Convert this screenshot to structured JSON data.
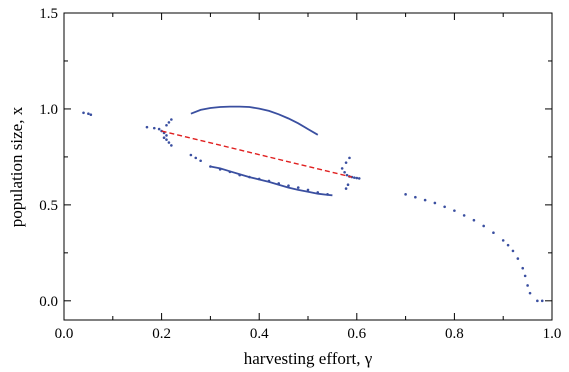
{
  "chart_data": {
    "type": "scatter",
    "xlabel": "harvesting effort, γ",
    "ylabel": "population size, x",
    "xlim": [
      0.0,
      1.0
    ],
    "ylim": [
      -0.1,
      1.5
    ],
    "xticks": [
      0.0,
      0.2,
      0.4,
      0.6,
      0.8,
      1.0
    ],
    "xtick_labels": [
      "0.0",
      "0.2",
      "0.4",
      "0.6",
      "0.8",
      "1.0"
    ],
    "yticks": [
      0.0,
      0.5,
      1.0,
      1.5
    ],
    "ytick_labels": [
      "0.0",
      "0.5",
      "1.0",
      "1.5"
    ],
    "grid": false,
    "colors": {
      "attractor": "#3a4fa0",
      "unstable": "#e02020"
    },
    "series": [
      {
        "style": "dots",
        "color": "#3a4fa0",
        "points": [
          [
            0.04,
            0.98
          ],
          [
            0.05,
            0.975
          ],
          [
            0.055,
            0.97
          ],
          [
            0.17,
            0.905
          ],
          [
            0.185,
            0.9
          ],
          [
            0.195,
            0.895
          ],
          [
            0.2,
            0.885
          ],
          [
            0.205,
            0.875
          ],
          [
            0.21,
            0.862
          ],
          [
            0.205,
            0.85
          ],
          [
            0.21,
            0.915
          ],
          [
            0.215,
            0.93
          ],
          [
            0.21,
            0.84
          ],
          [
            0.215,
            0.825
          ],
          [
            0.22,
            0.81
          ],
          [
            0.22,
            0.945
          ],
          [
            0.26,
            0.76
          ],
          [
            0.27,
            0.745
          ],
          [
            0.28,
            0.73
          ],
          [
            0.3,
            0.7
          ],
          [
            0.32,
            0.685
          ],
          [
            0.34,
            0.672
          ],
          [
            0.36,
            0.655
          ],
          [
            0.38,
            0.645
          ],
          [
            0.4,
            0.635
          ],
          [
            0.42,
            0.625
          ],
          [
            0.44,
            0.612
          ],
          [
            0.46,
            0.6
          ],
          [
            0.48,
            0.59
          ],
          [
            0.5,
            0.578
          ],
          [
            0.52,
            0.565
          ],
          [
            0.54,
            0.555
          ],
          [
            0.57,
            0.69
          ],
          [
            0.575,
            0.67
          ],
          [
            0.58,
            0.655
          ],
          [
            0.585,
            0.648
          ],
          [
            0.59,
            0.645
          ],
          [
            0.595,
            0.642
          ],
          [
            0.6,
            0.64
          ],
          [
            0.605,
            0.638
          ],
          [
            0.585,
            0.745
          ],
          [
            0.578,
            0.72
          ],
          [
            0.582,
            0.605
          ],
          [
            0.578,
            0.585
          ],
          [
            0.7,
            0.555
          ],
          [
            0.72,
            0.54
          ],
          [
            0.74,
            0.525
          ],
          [
            0.76,
            0.51
          ],
          [
            0.78,
            0.49
          ],
          [
            0.8,
            0.47
          ],
          [
            0.82,
            0.445
          ],
          [
            0.84,
            0.42
          ],
          [
            0.86,
            0.39
          ],
          [
            0.88,
            0.355
          ],
          [
            0.9,
            0.315
          ],
          [
            0.91,
            0.29
          ],
          [
            0.92,
            0.26
          ],
          [
            0.93,
            0.22
          ],
          [
            0.94,
            0.17
          ],
          [
            0.945,
            0.13
          ],
          [
            0.95,
            0.08
          ],
          [
            0.955,
            0.04
          ],
          [
            0.97,
            0.0
          ],
          [
            0.98,
            0.0
          ]
        ]
      },
      {
        "style": "curve",
        "color": "#3a4fa0",
        "points": [
          [
            0.26,
            0.975
          ],
          [
            0.28,
            0.995
          ],
          [
            0.3,
            1.005
          ],
          [
            0.32,
            1.01
          ],
          [
            0.34,
            1.012
          ],
          [
            0.36,
            1.012
          ],
          [
            0.38,
            1.01
          ],
          [
            0.4,
            1.002
          ],
          [
            0.42,
            0.99
          ],
          [
            0.44,
            0.972
          ],
          [
            0.46,
            0.95
          ],
          [
            0.48,
            0.925
          ],
          [
            0.5,
            0.895
          ],
          [
            0.52,
            0.865
          ]
        ]
      },
      {
        "style": "curve",
        "color": "#3a4fa0",
        "points": [
          [
            0.3,
            0.7
          ],
          [
            0.32,
            0.69
          ],
          [
            0.34,
            0.675
          ],
          [
            0.36,
            0.66
          ],
          [
            0.38,
            0.645
          ],
          [
            0.4,
            0.632
          ],
          [
            0.42,
            0.62
          ],
          [
            0.44,
            0.605
          ],
          [
            0.46,
            0.59
          ],
          [
            0.48,
            0.578
          ],
          [
            0.5,
            0.568
          ],
          [
            0.52,
            0.558
          ],
          [
            0.54,
            0.552
          ],
          [
            0.55,
            0.55
          ]
        ]
      },
      {
        "style": "dashed",
        "color": "#e02020",
        "points": [
          [
            0.2,
            0.885
          ],
          [
            0.59,
            0.645
          ]
        ]
      }
    ]
  }
}
